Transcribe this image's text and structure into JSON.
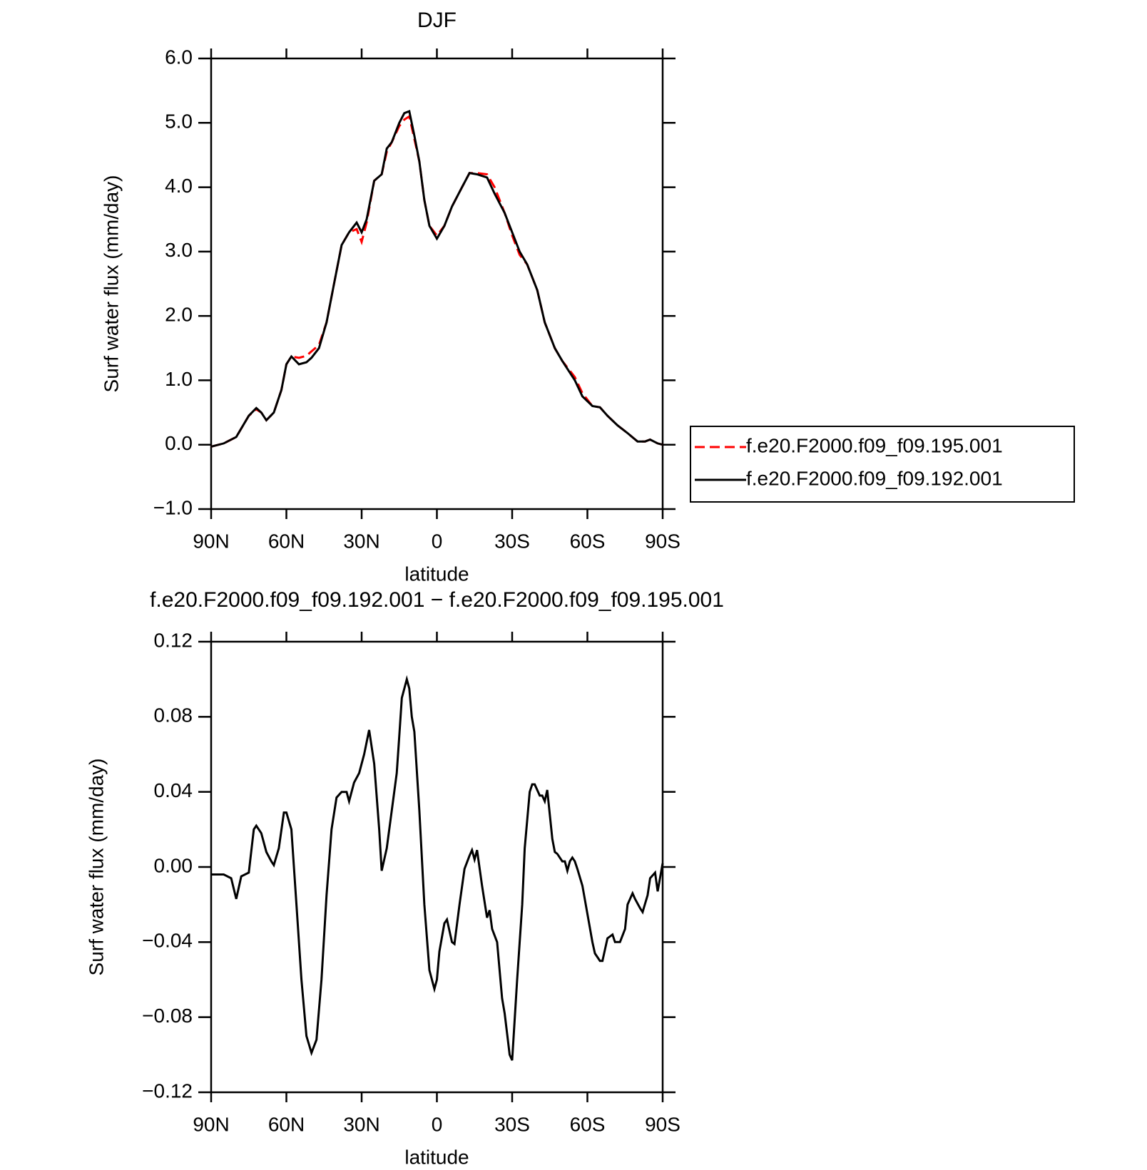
{
  "chart_data": [
    {
      "type": "line",
      "title": "DJF",
      "xlabel": "latitude",
      "ylabel": "Surf water flux (mm/day)",
      "xlim": [
        90,
        -90
      ],
      "xticks": [
        {
          "value": 90,
          "label": "90N"
        },
        {
          "value": 60,
          "label": "60N"
        },
        {
          "value": 30,
          "label": "30N"
        },
        0,
        {
          "value": -30,
          "label": "30S"
        },
        {
          "value": -60,
          "label": "60S"
        },
        {
          "value": -90,
          "label": "90S"
        }
      ],
      "ylim": [
        -1,
        6
      ],
      "yticks": [
        {
          "value": -1,
          "label": "−1.0"
        },
        {
          "value": 0,
          "label": "0.0"
        },
        {
          "value": 1,
          "label": "1.0"
        },
        {
          "value": 2,
          "label": "2.0"
        },
        {
          "value": 3,
          "label": "3.0"
        },
        {
          "value": 4,
          "label": "4.0"
        },
        {
          "value": 5,
          "label": "5.0"
        },
        {
          "value": 6,
          "label": "6.0"
        }
      ],
      "legend": "outside-right",
      "x": [
        90,
        85,
        80,
        75,
        72,
        70,
        68,
        65,
        62,
        60,
        58,
        55,
        52,
        50,
        47,
        44,
        41,
        38,
        35,
        32,
        30,
        28,
        25,
        22,
        20,
        18,
        15,
        13,
        11,
        9,
        7,
        5,
        3,
        0,
        -3,
        -6,
        -10,
        -13,
        -16,
        -20,
        -23,
        -27,
        -30,
        -33,
        -36,
        -40,
        -43,
        -47,
        -50,
        -55,
        -58,
        -62,
        -65,
        -68,
        -72,
        -76,
        -80,
        -83,
        -85,
        -88,
        -90
      ],
      "series": [
        {
          "name": "f.e20.F2000.f09_f09.195.001",
          "color": "#ff0000",
          "linestyle": "dashed",
          "values": [
            -0.03,
            0.02,
            0.12,
            0.45,
            0.55,
            0.5,
            0.38,
            0.5,
            0.85,
            1.25,
            1.37,
            1.35,
            1.38,
            1.45,
            1.55,
            1.9,
            2.5,
            3.1,
            3.3,
            3.35,
            3.15,
            3.45,
            4.1,
            4.2,
            4.55,
            4.7,
            4.95,
            5.05,
            5.1,
            4.75,
            4.4,
            3.8,
            3.4,
            3.25,
            3.4,
            3.7,
            4.0,
            4.22,
            4.22,
            4.2,
            4.0,
            3.6,
            3.25,
            2.95,
            2.8,
            2.4,
            1.9,
            1.5,
            1.3,
            1.05,
            0.8,
            0.6,
            0.58,
            0.45,
            0.3,
            0.18,
            0.05,
            0.05,
            0.08,
            0.02,
            0.0
          ]
        },
        {
          "name": "f.e20.F2000.f09_f09.192.001",
          "color": "#000000",
          "linestyle": "solid",
          "values": [
            -0.03,
            0.02,
            0.12,
            0.45,
            0.57,
            0.5,
            0.38,
            0.5,
            0.85,
            1.25,
            1.37,
            1.25,
            1.28,
            1.35,
            1.5,
            1.9,
            2.5,
            3.1,
            3.3,
            3.45,
            3.3,
            3.5,
            4.1,
            4.2,
            4.6,
            4.7,
            5.0,
            5.15,
            5.18,
            4.8,
            4.4,
            3.8,
            3.4,
            3.2,
            3.4,
            3.7,
            4.0,
            4.22,
            4.2,
            4.15,
            3.9,
            3.6,
            3.3,
            3.0,
            2.8,
            2.4,
            1.9,
            1.5,
            1.3,
            1.0,
            0.75,
            0.6,
            0.58,
            0.45,
            0.3,
            0.18,
            0.05,
            0.05,
            0.08,
            0.02,
            0.0
          ]
        }
      ]
    },
    {
      "type": "line",
      "title": "f.e20.F2000.f09_f09.192.001 − f.e20.F2000.f09_f09.195.001",
      "xlabel": "latitude",
      "ylabel": "Surf water flux (mm/day)",
      "xlim": [
        90,
        -90
      ],
      "xticks": [
        {
          "value": 90,
          "label": "90N"
        },
        {
          "value": 60,
          "label": "60N"
        },
        {
          "value": 30,
          "label": "30N"
        },
        0,
        {
          "value": -30,
          "label": "30S"
        },
        {
          "value": -60,
          "label": "60S"
        },
        {
          "value": -90,
          "label": "90S"
        }
      ],
      "ylim": [
        -0.12,
        0.12
      ],
      "yticks": [
        {
          "value": -0.12,
          "label": "−0.12"
        },
        {
          "value": -0.08,
          "label": "−0.08"
        },
        {
          "value": -0.04,
          "label": "−0.04"
        },
        {
          "value": 0,
          "label": "0.00"
        },
        0.04,
        0.08,
        0.12
      ],
      "x": [
        90,
        85,
        82,
        80,
        78,
        75,
        73,
        72,
        70,
        68,
        66,
        65,
        63,
        61,
        60,
        58,
        56,
        54,
        52,
        50,
        48,
        46,
        44,
        42,
        40,
        38,
        36,
        35,
        33,
        31,
        29,
        27,
        25,
        23,
        22,
        20,
        18,
        16,
        15,
        14,
        12,
        11,
        10,
        9,
        7,
        5,
        3,
        1,
        0,
        -1,
        -3,
        -4,
        -6,
        -7,
        -9,
        -11,
        -13,
        -14,
        -15,
        -16,
        -18,
        -20,
        -21,
        -22,
        -24,
        -26,
        -27,
        -29,
        -30,
        -32,
        -34,
        -35,
        -37,
        -38,
        -39,
        -41,
        -42,
        -43,
        -44,
        -46,
        -47,
        -48,
        -50,
        -51,
        -52,
        -53,
        -54,
        -55,
        -56,
        -58,
        -60,
        -62,
        -63,
        -65,
        -66,
        -68,
        -70,
        -71,
        -73,
        -75,
        -76,
        -78,
        -79,
        -81,
        -82,
        -84,
        -85,
        -87,
        -88,
        -90
      ],
      "series": [
        {
          "color": "#000000",
          "linestyle": "solid",
          "values": [
            -0.004,
            -0.004,
            -0.006,
            -0.017,
            -0.005,
            -0.003,
            0.02,
            0.022,
            0.018,
            0.008,
            0.003,
            0.001,
            0.01,
            0.029,
            0.029,
            0.02,
            -0.02,
            -0.06,
            -0.09,
            -0.099,
            -0.092,
            -0.06,
            -0.015,
            0.02,
            0.037,
            0.04,
            0.04,
            0.035,
            0.045,
            0.05,
            0.06,
            0.073,
            0.055,
            0.02,
            -0.002,
            0.01,
            0.03,
            0.05,
            0.07,
            0.09,
            0.1,
            0.095,
            0.08,
            0.072,
            0.03,
            -0.02,
            -0.055,
            -0.065,
            -0.06,
            -0.045,
            -0.03,
            -0.028,
            -0.04,
            -0.041,
            -0.02,
            -0.001,
            0.006,
            0.009,
            0.004,
            0.009,
            -0.01,
            -0.027,
            -0.023,
            -0.033,
            -0.04,
            -0.07,
            -0.078,
            -0.1,
            -0.103,
            -0.06,
            -0.02,
            0.01,
            0.04,
            0.044,
            0.044,
            0.038,
            0.038,
            0.035,
            0.041,
            0.015,
            0.008,
            0.007,
            0.003,
            0.003,
            -0.002,
            0.003,
            0.005,
            0.003,
            -0.001,
            -0.01,
            -0.025,
            -0.04,
            -0.046,
            -0.05,
            -0.05,
            -0.038,
            -0.036,
            -0.04,
            -0.04,
            -0.033,
            -0.02,
            -0.014,
            -0.017,
            -0.022,
            -0.024,
            -0.015,
            -0.006,
            -0.003,
            -0.013,
            0.002
          ]
        }
      ]
    }
  ]
}
